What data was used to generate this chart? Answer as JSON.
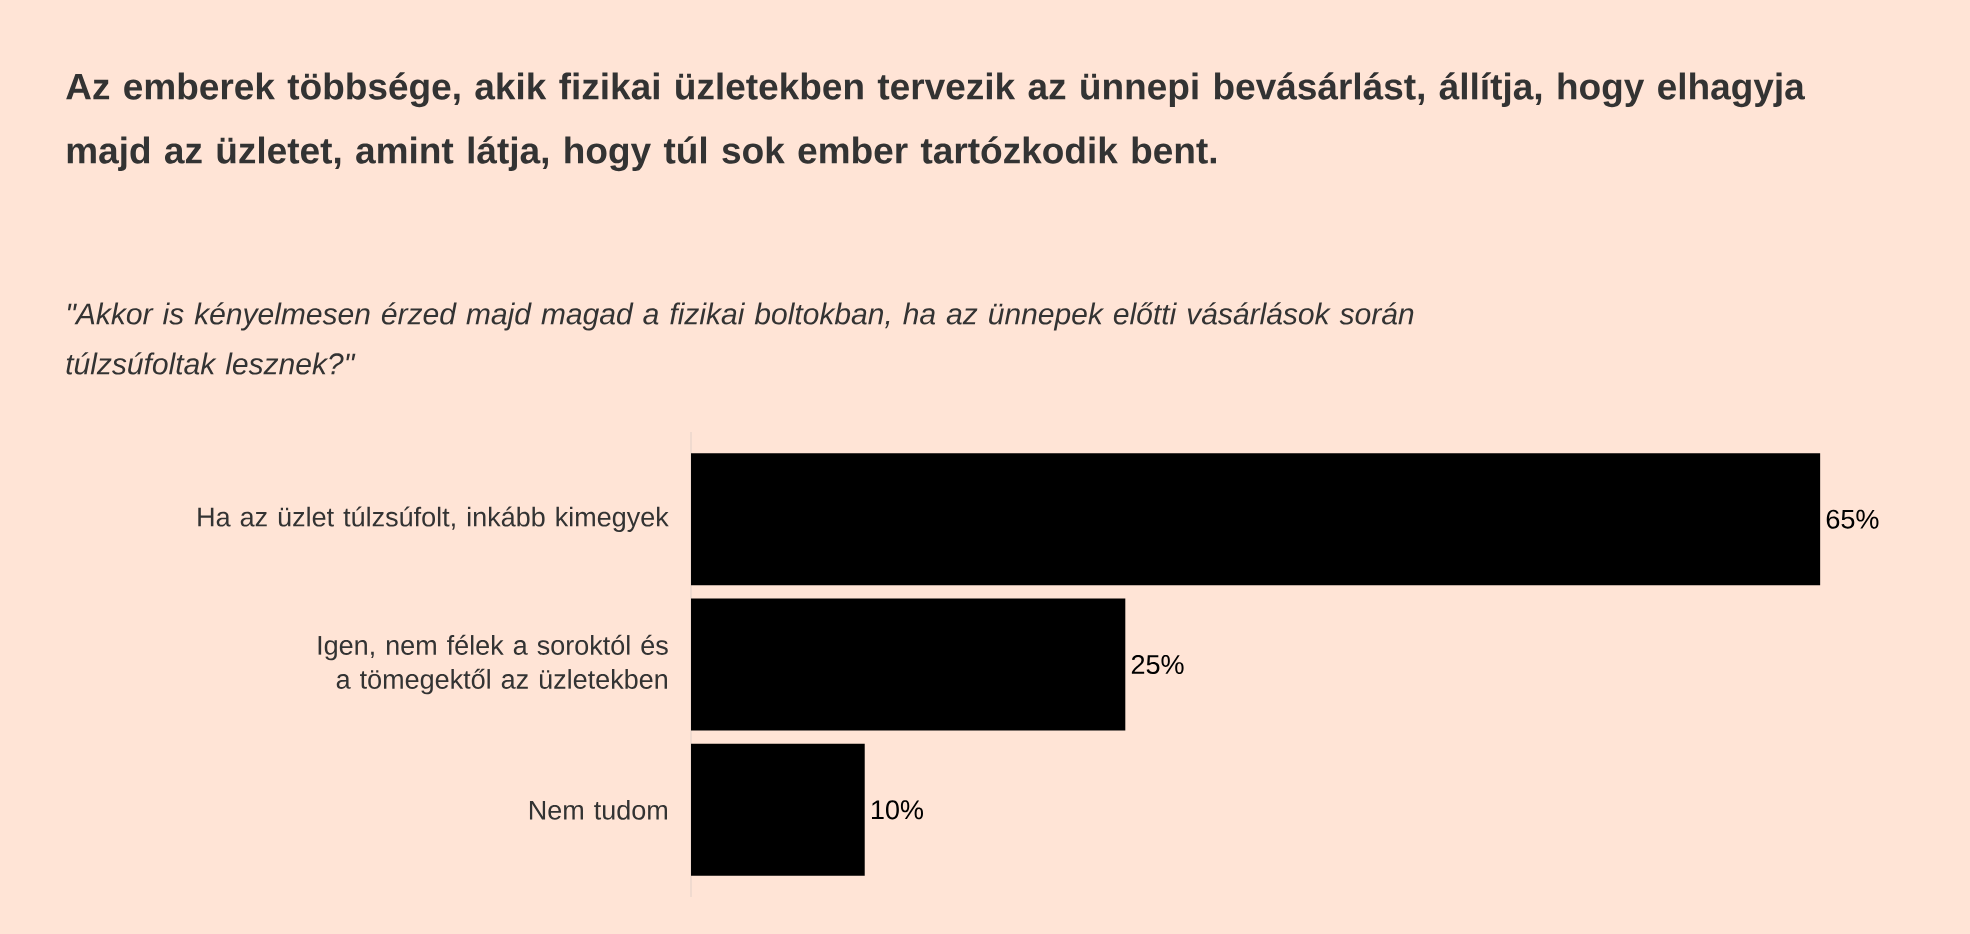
{
  "chart_data": {
    "type": "bar",
    "orientation": "horizontal",
    "title": "Az emberek többsége, akik fizikai üzletekben tervezik az ünnepi bevásárlást, állítja, hogy elhagyja majd az üzletet, amint látja, hogy túl sok ember tartózkodik bent.",
    "subtitle": "\"Akkor is kényelmesen érzed majd magad a fizikai boltokban, ha az ünnepek előtti vásárlások során túlzsúfoltak lesznek?\"",
    "categories": [
      "Ha az üzlet túlzsúfolt, inkább kimegyek",
      "Igen, nem félek a soroktól és a tömegektől az üzletekben",
      "Nem tudom"
    ],
    "values": [
      65,
      25,
      10
    ],
    "value_labels": [
      "65%",
      "25%",
      "10%"
    ],
    "color": "#000000"
  }
}
